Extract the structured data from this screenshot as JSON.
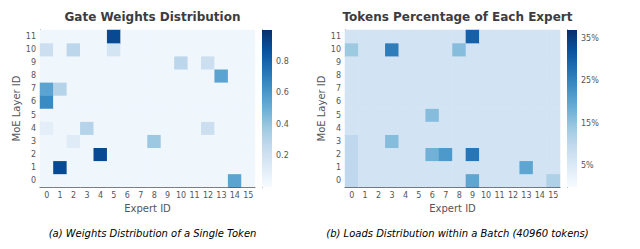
{
  "chart_data": [
    {
      "type": "heatmap",
      "title": "Gate Weights Distribution",
      "xlabel": "Expert ID",
      "ylabel": "MoE Layer ID",
      "caption": "(a) Weights Distribution of a Single Token",
      "categories": [
        "0",
        "1",
        "2",
        "3",
        "4",
        "5",
        "6",
        "7",
        "8",
        "9",
        "10",
        "11",
        "12",
        "13",
        "14",
        "15"
      ],
      "y_categories": [
        "0",
        "1",
        "2",
        "3",
        "4",
        "5",
        "6",
        "7",
        "8",
        "9",
        "10",
        "11"
      ],
      "values": [
        [
          0.04,
          0.04,
          0.04,
          0.04,
          0.04,
          0.04,
          0.04,
          0.04,
          0.04,
          0.04,
          0.04,
          0.04,
          0.04,
          0.04,
          0.55,
          0.04
        ],
        [
          0.04,
          0.9,
          0.04,
          0.04,
          0.04,
          0.04,
          0.04,
          0.04,
          0.04,
          0.04,
          0.04,
          0.04,
          0.04,
          0.04,
          0.04,
          0.04
        ],
        [
          0.04,
          0.04,
          0.04,
          0.04,
          0.9,
          0.04,
          0.04,
          0.04,
          0.04,
          0.04,
          0.04,
          0.04,
          0.04,
          0.04,
          0.04,
          0.04
        ],
        [
          0.04,
          0.04,
          0.12,
          0.04,
          0.04,
          0.04,
          0.04,
          0.04,
          0.38,
          0.04,
          0.04,
          0.04,
          0.04,
          0.04,
          0.04,
          0.04
        ],
        [
          0.1,
          0.04,
          0.04,
          0.3,
          0.04,
          0.04,
          0.04,
          0.04,
          0.04,
          0.04,
          0.04,
          0.04,
          0.22,
          0.04,
          0.04,
          0.04
        ],
        [
          0.04,
          0.04,
          0.04,
          0.04,
          0.04,
          0.04,
          0.04,
          0.04,
          0.04,
          0.04,
          0.04,
          0.04,
          0.04,
          0.04,
          0.04,
          0.04
        ],
        [
          0.65,
          0.04,
          0.04,
          0.04,
          0.04,
          0.04,
          0.04,
          0.04,
          0.04,
          0.04,
          0.04,
          0.04,
          0.04,
          0.04,
          0.04,
          0.04
        ],
        [
          0.55,
          0.3,
          0.04,
          0.04,
          0.04,
          0.04,
          0.04,
          0.04,
          0.04,
          0.04,
          0.04,
          0.04,
          0.04,
          0.04,
          0.04,
          0.04
        ],
        [
          0.04,
          0.04,
          0.04,
          0.04,
          0.04,
          0.04,
          0.04,
          0.04,
          0.04,
          0.04,
          0.04,
          0.04,
          0.04,
          0.55,
          0.04,
          0.04
        ],
        [
          0.04,
          0.04,
          0.04,
          0.04,
          0.04,
          0.04,
          0.04,
          0.04,
          0.04,
          0.04,
          0.28,
          0.04,
          0.22,
          0.04,
          0.04,
          0.04
        ],
        [
          0.22,
          0.04,
          0.28,
          0.04,
          0.04,
          0.18,
          0.04,
          0.04,
          0.04,
          0.04,
          0.04,
          0.04,
          0.04,
          0.04,
          0.04,
          0.04
        ],
        [
          0.04,
          0.04,
          0.04,
          0.04,
          0.04,
          0.9,
          0.04,
          0.04,
          0.04,
          0.04,
          0.04,
          0.04,
          0.04,
          0.04,
          0.04,
          0.04
        ]
      ],
      "colorbar_range": [
        0,
        1.0
      ],
      "colorbar_ticks": [
        0.2,
        0.4,
        0.6,
        0.8
      ],
      "color": "Blues",
      "grid": false
    },
    {
      "type": "heatmap",
      "title": "Tokens Percentage of Each Expert",
      "xlabel": "Expert ID",
      "ylabel": "MoE Layer ID",
      "caption": "(b) Loads Distribution within a Batch (40960 tokens)",
      "categories": [
        "0",
        "1",
        "2",
        "3",
        "4",
        "5",
        "6",
        "7",
        "8",
        "9",
        "10",
        "11",
        "12",
        "13",
        "14",
        "15"
      ],
      "y_categories": [
        "0",
        "1",
        "2",
        "3",
        "4",
        "5",
        "6",
        "7",
        "8",
        "9",
        "10",
        "11"
      ],
      "values": [
        [
          0.1,
          0.07,
          0.07,
          0.07,
          0.07,
          0.07,
          0.07,
          0.07,
          0.07,
          0.2,
          0.07,
          0.07,
          0.07,
          0.07,
          0.07,
          0.12
        ],
        [
          0.1,
          0.07,
          0.07,
          0.07,
          0.07,
          0.07,
          0.07,
          0.07,
          0.07,
          0.07,
          0.07,
          0.07,
          0.07,
          0.2,
          0.07,
          0.07
        ],
        [
          0.1,
          0.07,
          0.07,
          0.07,
          0.07,
          0.07,
          0.18,
          0.22,
          0.07,
          0.27,
          0.07,
          0.07,
          0.07,
          0.07,
          0.07,
          0.07
        ],
        [
          0.1,
          0.07,
          0.07,
          0.16,
          0.07,
          0.07,
          0.07,
          0.07,
          0.07,
          0.07,
          0.07,
          0.07,
          0.07,
          0.07,
          0.07,
          0.07
        ],
        [
          0.07,
          0.07,
          0.07,
          0.07,
          0.07,
          0.07,
          0.07,
          0.07,
          0.07,
          0.07,
          0.07,
          0.07,
          0.07,
          0.07,
          0.07,
          0.07
        ],
        [
          0.07,
          0.07,
          0.07,
          0.07,
          0.07,
          0.07,
          0.16,
          0.07,
          0.07,
          0.07,
          0.07,
          0.07,
          0.07,
          0.07,
          0.07,
          0.07
        ],
        [
          0.07,
          0.07,
          0.07,
          0.07,
          0.07,
          0.07,
          0.07,
          0.07,
          0.07,
          0.07,
          0.07,
          0.07,
          0.07,
          0.07,
          0.07,
          0.07
        ],
        [
          0.07,
          0.07,
          0.07,
          0.07,
          0.07,
          0.07,
          0.07,
          0.07,
          0.07,
          0.07,
          0.07,
          0.07,
          0.07,
          0.07,
          0.07,
          0.07
        ],
        [
          0.07,
          0.07,
          0.07,
          0.07,
          0.07,
          0.07,
          0.07,
          0.07,
          0.07,
          0.07,
          0.07,
          0.07,
          0.07,
          0.07,
          0.07,
          0.07
        ],
        [
          0.07,
          0.07,
          0.07,
          0.07,
          0.07,
          0.07,
          0.07,
          0.07,
          0.07,
          0.07,
          0.07,
          0.07,
          0.07,
          0.07,
          0.07,
          0.07
        ],
        [
          0.14,
          0.07,
          0.07,
          0.26,
          0.07,
          0.07,
          0.07,
          0.07,
          0.16,
          0.07,
          0.07,
          0.07,
          0.07,
          0.07,
          0.07,
          0.07
        ],
        [
          0.07,
          0.07,
          0.07,
          0.07,
          0.07,
          0.07,
          0.07,
          0.07,
          0.07,
          0.3,
          0.07,
          0.07,
          0.07,
          0.07,
          0.07,
          0.07
        ]
      ],
      "colorbar_range": [
        0.0,
        0.37
      ],
      "colorbar_ticks": [
        {
          "value": 0.05,
          "label": "5%"
        },
        {
          "value": 0.15,
          "label": "15%"
        },
        {
          "value": 0.25,
          "label": "25%"
        },
        {
          "value": 0.35,
          "label": "35%"
        }
      ],
      "color": "Blues",
      "grid": false
    }
  ]
}
